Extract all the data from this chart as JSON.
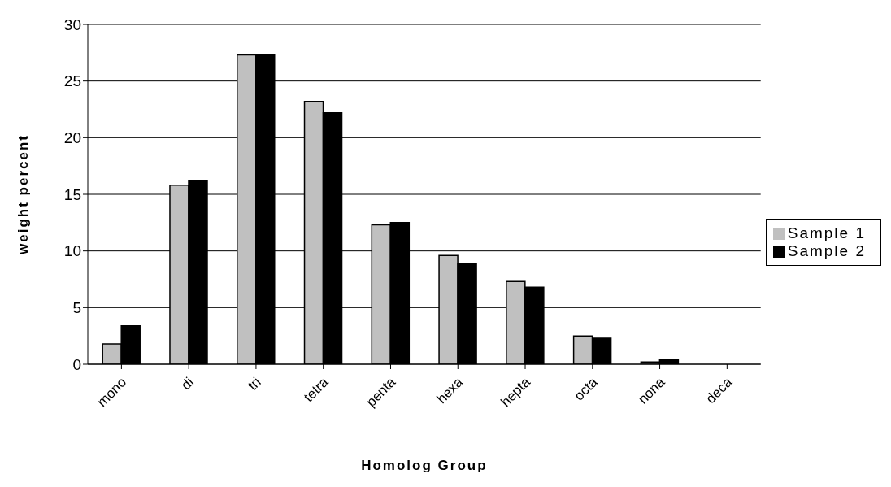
{
  "chart_data": {
    "type": "bar",
    "xlabel": "Homolog Group",
    "ylabel": "weight percent",
    "categories": [
      "mono",
      "di",
      "tri",
      "tetra",
      "penta",
      "hexa",
      "hepta",
      "octa",
      "nona",
      "deca"
    ],
    "series": [
      {
        "name": "Sample 1",
        "color": "#c0c0c0",
        "values": [
          1.8,
          15.8,
          27.3,
          23.2,
          12.3,
          9.6,
          7.3,
          2.5,
          0.2,
          0
        ]
      },
      {
        "name": "Sample 2",
        "color": "#000000",
        "values": [
          3.4,
          16.2,
          27.3,
          22.2,
          12.5,
          8.9,
          6.8,
          2.3,
          0.4,
          0
        ]
      }
    ],
    "ylim": [
      0,
      30
    ],
    "yticks": [
      0,
      5,
      10,
      15,
      20,
      25,
      30
    ],
    "grid": "y",
    "legend": "right"
  }
}
